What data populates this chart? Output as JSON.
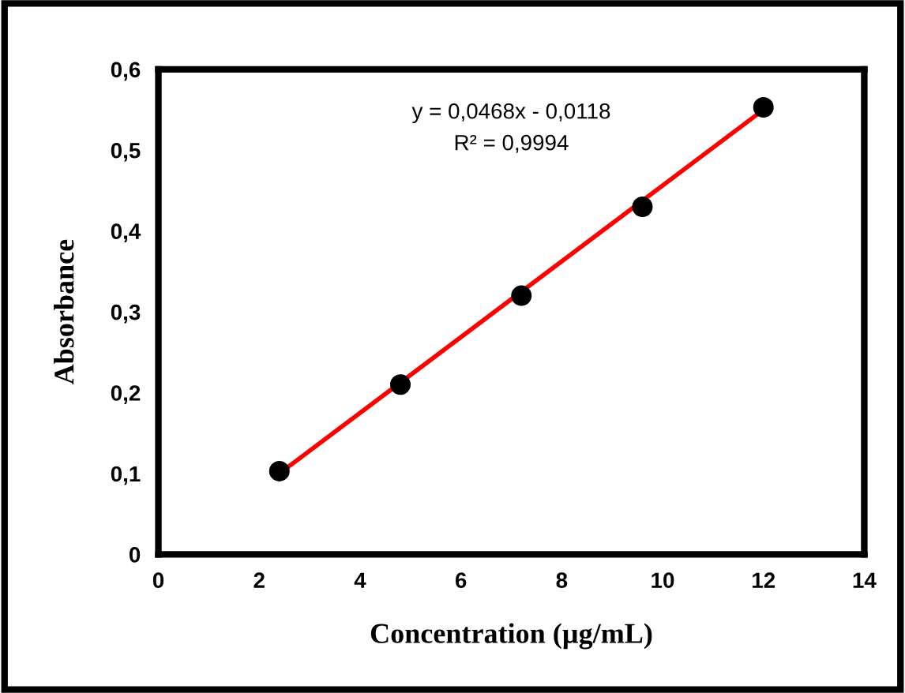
{
  "chart_data": {
    "type": "scatter",
    "xlabel": "Concentration (µg/mL)",
    "ylabel": "Absorbance",
    "annotations": [
      "y = 0,0468x - 0,0118",
      "R² = 0,9994"
    ],
    "series": [
      {
        "color": "#000000",
        "marker": "circle",
        "x": [
          2.4,
          4.8,
          7.2,
          9.6,
          12
        ],
        "values": [
          0.103,
          0.21,
          0.32,
          0.43,
          0.553
        ]
      },
      {
        "type": "line",
        "marker": "none",
        "color": "#ff0000",
        "x": [
          2.4,
          12
        ],
        "values": [
          0.1,
          0.55
        ]
      }
    ],
    "xlim": [
      0,
      14
    ],
    "xticks": [
      0,
      2,
      4,
      6,
      8,
      10,
      12,
      14
    ],
    "ylim": [
      0,
      0.6
    ],
    "yticks": [
      0,
      {
        "value": 0.1,
        "label": "0,1"
      },
      {
        "value": 0.2,
        "label": "0,2"
      },
      {
        "value": 0.3,
        "label": "0,3"
      },
      {
        "value": 0.4,
        "label": "0,4"
      },
      {
        "value": 0.5,
        "label": "0,5"
      },
      {
        "value": 0.6,
        "label": "0,6"
      }
    ],
    "grid": false,
    "legend": false
  }
}
